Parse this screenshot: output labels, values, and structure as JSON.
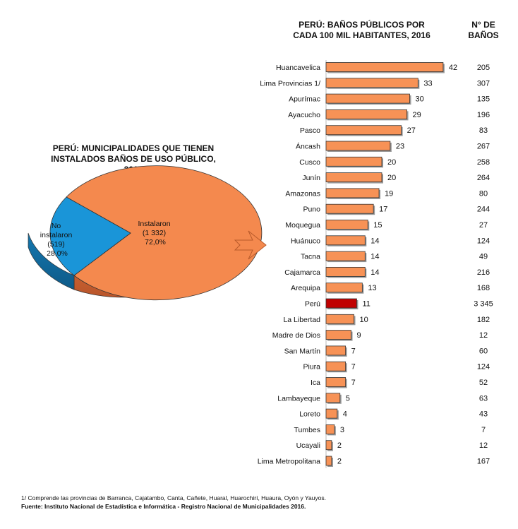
{
  "pie_title": [
    "PERÚ: MUNICIPALIDADES QUE TIENEN",
    "INSTALADOS BAÑOS DE USO PÚBLICO,",
    "2016"
  ],
  "bar_title": [
    "PERÚ: BAÑOS PÚBLICOS POR",
    "CADA 100 MIL HABITANTES, 2016"
  ],
  "count_title": [
    "N° DE",
    "BAÑOS"
  ],
  "colors": {
    "bar": "#f79256",
    "highlight": "#c00000",
    "pie_installed": "#f4894e",
    "pie_not": "#1a95d8",
    "arrow": "#f4894e"
  },
  "chart_data": [
    {
      "type": "pie",
      "title": "PERÚ: MUNICIPALIDADES QUE TIENEN INSTALADOS BAÑOS DE USO PÚBLICO, 2016",
      "slices": [
        {
          "lines": [
            "Instalaron",
            "(1 332)",
            "72,0%"
          ],
          "value": 1332,
          "percent": 72.0
        },
        {
          "lines": [
            "No",
            "instalaron",
            "(519)",
            "28,0%"
          ],
          "value": 519,
          "percent": 28.0
        }
      ]
    },
    {
      "type": "bar",
      "orientation": "horizontal",
      "title": "PERÚ: BAÑOS PÚBLICOS POR CADA 100 MIL HABITANTES, 2016",
      "categories": [
        "Huancavelica",
        "Lima Provincias 1/",
        "Apurímac",
        "Ayacucho",
        "Pasco",
        "Áncash",
        "Cusco",
        "Junín",
        "Amazonas",
        "Puno",
        "Moquegua",
        "Huánuco",
        "Tacna",
        "Cajamarca",
        "Arequipa",
        "Perú",
        "La Libertad",
        "Madre de Dios",
        "San Martín",
        "Piura",
        "Ica",
        "Lambayeque",
        "Loreto",
        "Tumbes",
        "Ucayali",
        "Lima Metropolitana"
      ],
      "values": [
        42,
        33,
        30,
        29,
        27,
        23,
        20,
        20,
        19,
        17,
        15,
        14,
        14,
        14,
        13,
        11,
        10,
        9,
        7,
        7,
        7,
        5,
        4,
        3,
        2,
        2
      ],
      "counts": [
        "205",
        "307",
        "135",
        "196",
        "83",
        "267",
        "258",
        "264",
        "80",
        "244",
        "27",
        "124",
        "49",
        "216",
        "168",
        "3 345",
        "182",
        "12",
        "60",
        "124",
        "52",
        "63",
        "43",
        "7",
        "12",
        "167"
      ],
      "highlight": "Perú",
      "xlim": [
        0,
        42
      ]
    }
  ],
  "footnote": "1/ Comprende las provincias de Barranca, Cajatambo, Canta, Cañete, Huaral, Huarochirí, Huaura, Oyón y Yauyos.",
  "source": "Fuente: Instituto Nacional de Estadística e Informática - Registro Nacional de Municipalidades 2016."
}
